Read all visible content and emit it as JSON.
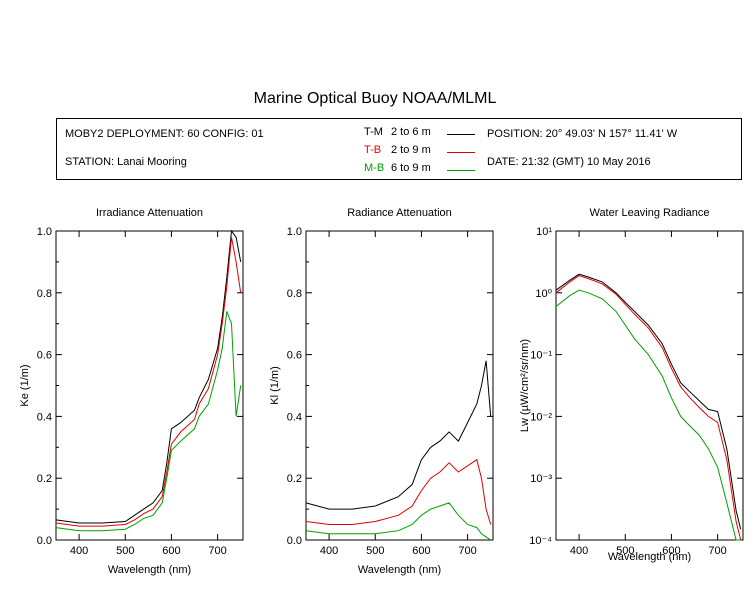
{
  "header": {
    "title": "Marine Optical Buoy NOAA/MLML",
    "deployment": "MOBY2 DEPLOYMENT: 60 CONFIG: 01",
    "station": "STATION: Lanai Mooring",
    "position": "POSITION: 20° 49.03' N   157° 11.41' W",
    "date": "DATE: 21:32 (GMT) 10 May 2016"
  },
  "legend": [
    {
      "code": "T-M",
      "range": "2 to 6  m",
      "color": "#000000"
    },
    {
      "code": "T-B",
      "range": "2 to 9  m",
      "color": "#e00000"
    },
    {
      "code": "M-B",
      "range": "6 to 9  m",
      "color": "#00a000"
    }
  ],
  "colors": {
    "tm": "#000000",
    "tb": "#e00000",
    "mb": "#00a000"
  },
  "chart_data": [
    {
      "type": "line",
      "title": "Irradiance Attenuation",
      "xlabel": "Wavelength (nm)",
      "ylabel": "Ke  (1/m)",
      "xlim": [
        350,
        755
      ],
      "ylim": [
        0,
        1
      ],
      "xticks": [
        "400",
        "500",
        "600",
        "700"
      ],
      "yticks": [
        "0.0",
        "0.2",
        "0.4",
        "0.6",
        "0.8",
        "1.0"
      ],
      "x": [
        350,
        400,
        450,
        500,
        520,
        540,
        560,
        580,
        590,
        600,
        620,
        650,
        660,
        680,
        700,
        710,
        720,
        730,
        740,
        750
      ],
      "series": [
        {
          "name": "T-M",
          "values": [
            0.065,
            0.055,
            0.055,
            0.06,
            0.08,
            0.1,
            0.12,
            0.16,
            0.25,
            0.36,
            0.38,
            0.42,
            0.46,
            0.52,
            0.62,
            0.72,
            0.85,
            1.0,
            0.98,
            0.9
          ]
        },
        {
          "name": "T-B",
          "values": [
            0.055,
            0.045,
            0.045,
            0.05,
            0.065,
            0.085,
            0.1,
            0.14,
            0.22,
            0.31,
            0.35,
            0.39,
            0.44,
            0.49,
            0.6,
            0.7,
            0.82,
            0.98,
            0.9,
            0.8
          ]
        },
        {
          "name": "M-B",
          "values": [
            0.04,
            0.03,
            0.03,
            0.035,
            0.05,
            0.07,
            0.08,
            0.12,
            0.2,
            0.29,
            0.32,
            0.36,
            0.4,
            0.44,
            0.55,
            0.62,
            0.74,
            0.7,
            0.4,
            0.5
          ]
        }
      ]
    },
    {
      "type": "line",
      "title": "Radiance Attenuation",
      "xlabel": "Wavelength (nm)",
      "ylabel": "Kl  (1/m)",
      "xlim": [
        350,
        755
      ],
      "ylim": [
        0,
        1
      ],
      "xticks": [
        "400",
        "500",
        "600",
        "700"
      ],
      "yticks": [
        "0.0",
        "0.2",
        "0.4",
        "0.6",
        "0.8",
        "1.0"
      ],
      "x": [
        350,
        400,
        450,
        500,
        550,
        580,
        600,
        620,
        640,
        660,
        680,
        700,
        720,
        730,
        740,
        750
      ],
      "series": [
        {
          "name": "T-M",
          "values": [
            0.12,
            0.1,
            0.1,
            0.11,
            0.14,
            0.18,
            0.26,
            0.3,
            0.32,
            0.35,
            0.32,
            0.38,
            0.44,
            0.5,
            0.58,
            0.4
          ]
        },
        {
          "name": "T-B",
          "values": [
            0.06,
            0.05,
            0.05,
            0.06,
            0.08,
            0.11,
            0.16,
            0.2,
            0.22,
            0.25,
            0.22,
            0.24,
            0.26,
            0.2,
            0.1,
            0.05
          ]
        },
        {
          "name": "M-B",
          "values": [
            0.03,
            0.02,
            0.02,
            0.02,
            0.03,
            0.05,
            0.08,
            0.1,
            0.11,
            0.12,
            0.08,
            0.05,
            0.04,
            0.02,
            0.01,
            0.0
          ]
        }
      ]
    },
    {
      "type": "line",
      "title": "Water Leaving Radiance",
      "xlabel": "Wavelength (nm)",
      "ylabel": "Lw  (µW/cm²/sr/nm)",
      "xlim": [
        350,
        755
      ],
      "ylim": [
        0.0001,
        10
      ],
      "yscale": "log",
      "xticks": [
        "400",
        "500",
        "600",
        "700"
      ],
      "yticks": [
        "10⁻⁴",
        "10⁻³",
        "10⁻²",
        "10⁻¹",
        "10⁰",
        "10¹"
      ],
      "x": [
        350,
        380,
        400,
        420,
        450,
        480,
        500,
        520,
        550,
        580,
        600,
        620,
        640,
        660,
        680,
        700,
        720,
        740,
        750
      ],
      "series": [
        {
          "name": "T-M",
          "values": [
            1.1,
            1.6,
            2.0,
            1.8,
            1.5,
            1.0,
            0.7,
            0.5,
            0.3,
            0.15,
            0.07,
            0.035,
            0.025,
            0.018,
            0.013,
            0.012,
            0.003,
            0.0003,
            0.00015
          ]
        },
        {
          "name": "T-B",
          "values": [
            1.0,
            1.5,
            1.9,
            1.7,
            1.4,
            0.95,
            0.65,
            0.45,
            0.27,
            0.13,
            0.06,
            0.03,
            0.02,
            0.014,
            0.01,
            0.008,
            0.002,
            0.0002,
            0.0001
          ]
        },
        {
          "name": "M-B",
          "values": [
            0.6,
            0.9,
            1.1,
            1.0,
            0.8,
            0.5,
            0.3,
            0.18,
            0.1,
            0.045,
            0.02,
            0.01,
            0.007,
            0.005,
            0.003,
            0.0015,
            0.0004,
            0.0001,
            0.0001
          ]
        }
      ]
    }
  ]
}
